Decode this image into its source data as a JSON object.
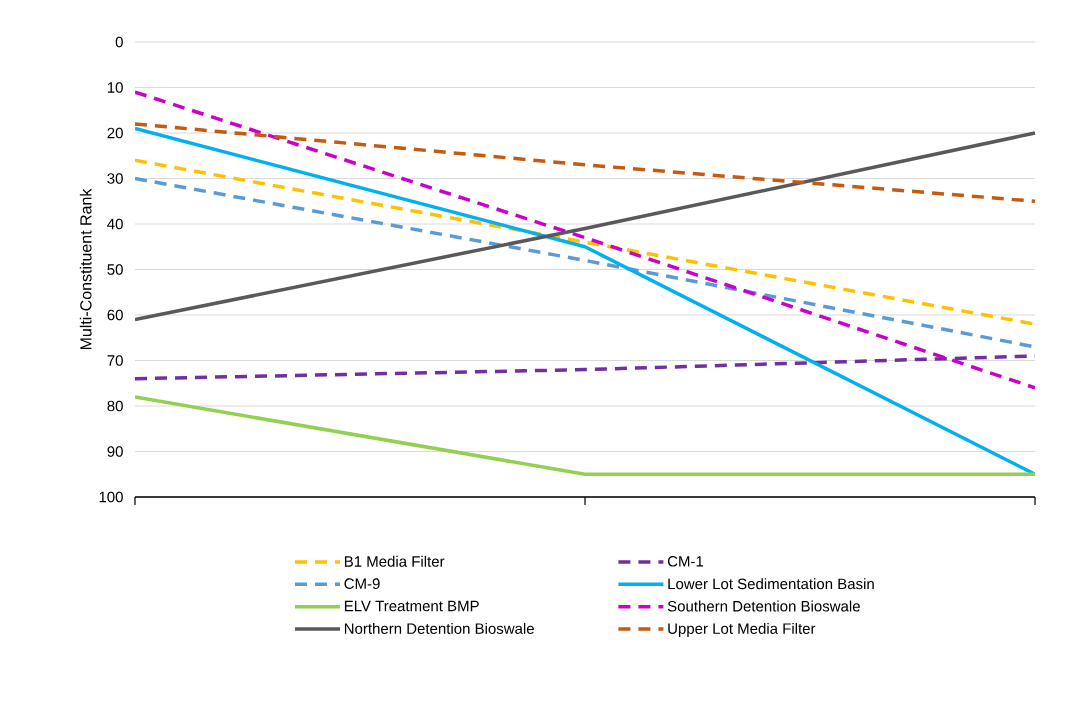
{
  "chart_data": {
    "type": "line",
    "ylabel": "Multi-Constituent Rank",
    "categories": [
      null,
      null,
      null
    ],
    "ylim": [
      100,
      0
    ],
    "yticks": [
      0,
      10,
      20,
      30,
      40,
      50,
      60,
      70,
      80,
      90,
      100
    ],
    "grid": "y",
    "legend": "bottom",
    "tick_labels": "y",
    "marker": "none",
    "series": [
      {
        "name": "B1 Media Filter",
        "color": "#ffc000",
        "line_style": "dashed",
        "values": [
          26,
          44,
          62
        ]
      },
      {
        "name": "CM-1",
        "color": "#7030a0",
        "line_style": "dashed",
        "values": [
          74,
          72,
          69
        ]
      },
      {
        "name": "CM-9",
        "color": "#5b9bd5",
        "line_style": "dashed",
        "values": [
          30,
          48,
          67
        ]
      },
      {
        "name": "Lower Lot Sedimentation Basin",
        "color": "#00b0f0",
        "line_style": "solid",
        "values": [
          19,
          45,
          95
        ]
      },
      {
        "name": "ELV Treatment BMP",
        "color": "#92d050",
        "line_style": "solid",
        "values": [
          78,
          95,
          95
        ]
      },
      {
        "name": "Southern Detention Bioswale",
        "color": "#cc00cc",
        "line_style": "dashed",
        "values": [
          11,
          43,
          76
        ]
      },
      {
        "name": "Northern Detention Bioswale",
        "color": "#595959",
        "line_style": "solid",
        "values": [
          61,
          41,
          20
        ]
      },
      {
        "name": "Upper Lot Media Filter",
        "color": "#c55a11",
        "line_style": "dashed",
        "values": [
          18,
          27,
          35
        ]
      }
    ]
  }
}
